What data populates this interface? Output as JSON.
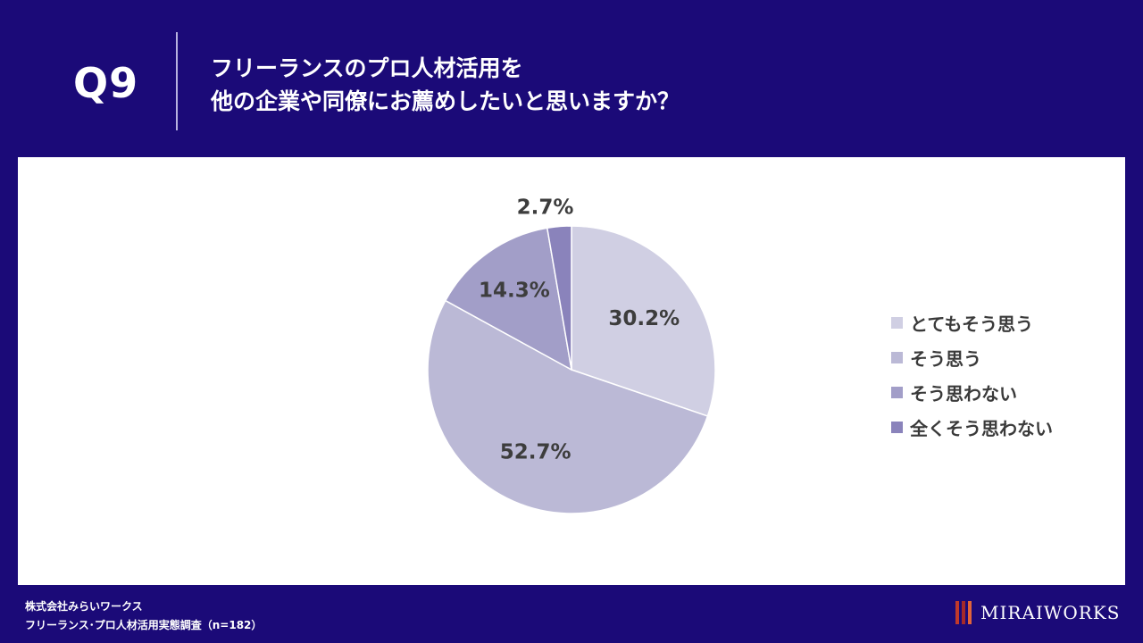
{
  "header": {
    "question_no": "Q9",
    "title_line1": "フリーランスのプロ人材活用を",
    "title_line2": "他の企業や同僚にお薦めしたいと思いますか？"
  },
  "chart_data": {
    "type": "pie",
    "categories": [
      "とてもそう思う",
      "そう思う",
      "そう思わない",
      "全くそう思わない"
    ],
    "values": [
      30.2,
      52.7,
      14.3,
      2.7
    ],
    "labels": [
      "30.2%",
      "52.7%",
      "14.3%",
      "2.7%"
    ],
    "colors": [
      "#d0cfe3",
      "#bbb9d6",
      "#a29ec8",
      "#8a83bb"
    ],
    "legend_position": "right",
    "title": ""
  },
  "footer": {
    "company": "株式会社みらいワークス",
    "survey": "フリーランス･プロ人材活用実態調査（n=182）"
  },
  "logo": {
    "text": "MiraiWorks",
    "display": "MIRAIWORKS"
  }
}
